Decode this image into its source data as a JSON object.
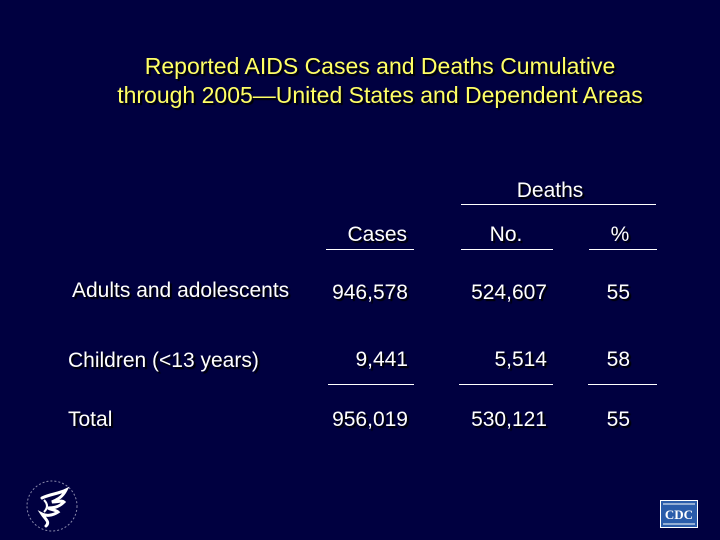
{
  "slide": {
    "title_line1": "Reported AIDS Cases and Deaths Cumulative",
    "title_line2": "through 2005—United States and Dependent Areas"
  },
  "table": {
    "group_header": "Deaths",
    "columns": {
      "cases": "Cases",
      "deaths_no": "No.",
      "deaths_pct": "%"
    },
    "rows": [
      {
        "label": "Adults and adolescents",
        "cases": "946,578",
        "deaths_no": "524,607",
        "deaths_pct": "55"
      },
      {
        "label": "Children (<13 years)",
        "cases": "9,441",
        "deaths_no": "5,514",
        "deaths_pct": "58"
      },
      {
        "label": "Total",
        "cases": "956,019",
        "deaths_no": "530,121",
        "deaths_pct": "55"
      }
    ]
  },
  "logos": {
    "left": "hhs-eagle-logo",
    "right_text": "CDC"
  },
  "colors": {
    "background": "#000040",
    "title": "#ffff66",
    "text": "#ffffff"
  }
}
